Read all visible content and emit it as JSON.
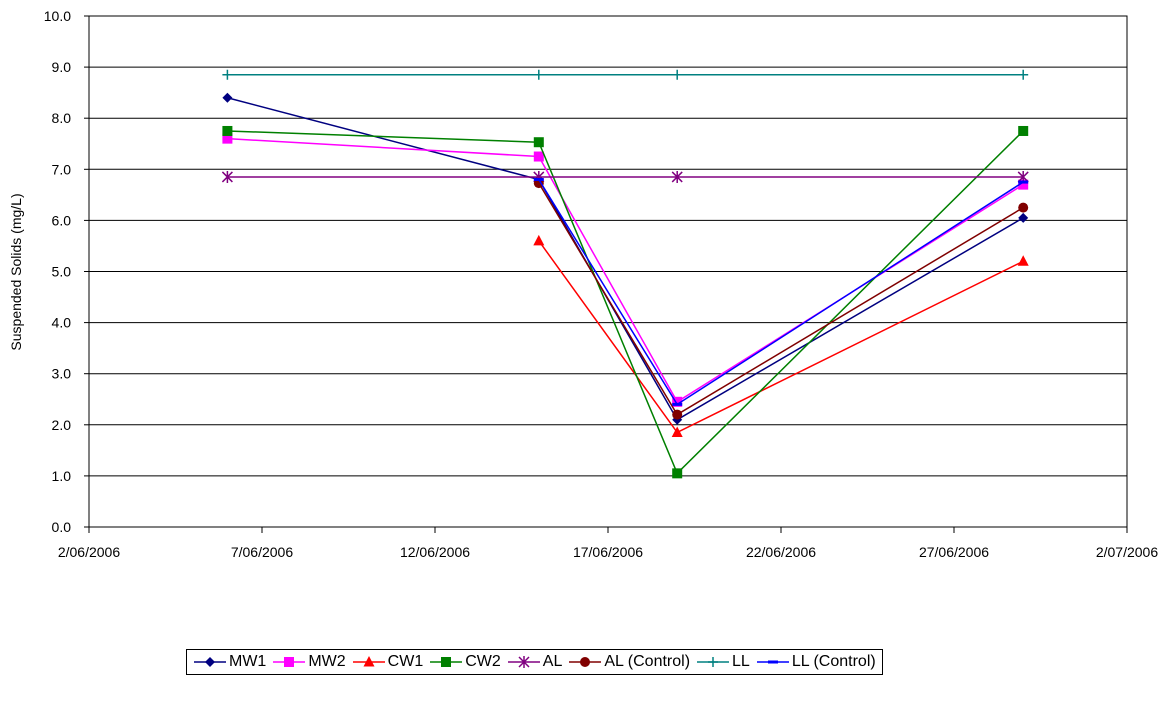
{
  "chart_data": {
    "type": "line",
    "ylabel": "Suspended Solids (mg/L)",
    "xlabel": "",
    "ylim": [
      0,
      10
    ],
    "y_ticks": [
      "0.0",
      "1.0",
      "2.0",
      "3.0",
      "4.0",
      "5.0",
      "6.0",
      "7.0",
      "8.0",
      "9.0",
      "10.0"
    ],
    "x_ticks": [
      "2/06/2006",
      "7/06/2006",
      "12/06/2006",
      "17/06/2006",
      "22/06/2006",
      "27/06/2006",
      "2/07/2006"
    ],
    "x_tick_dates": [
      "2006-06-02",
      "2006-06-07",
      "2006-06-12",
      "2006-06-17",
      "2006-06-22",
      "2006-06-27",
      "2006-07-02"
    ],
    "grid": "horizontal",
    "legend_position": "bottom",
    "series": [
      {
        "name": "MW1",
        "color": "#000080",
        "marker": "diamond",
        "points": [
          [
            "2006-06-06",
            8.4
          ],
          [
            "2006-06-15",
            6.8
          ],
          [
            "2006-06-19",
            2.1
          ],
          [
            "2006-06-29",
            6.05
          ]
        ]
      },
      {
        "name": "MW2",
        "color": "#FF00FF",
        "marker": "square",
        "points": [
          [
            "2006-06-06",
            7.6
          ],
          [
            "2006-06-15",
            7.25
          ],
          [
            "2006-06-19",
            2.45
          ],
          [
            "2006-06-29",
            6.7
          ]
        ]
      },
      {
        "name": "CW1",
        "color": "#FF0000",
        "marker": "triangle",
        "points": [
          [
            "2006-06-15",
            5.6
          ],
          [
            "2006-06-19",
            1.85
          ],
          [
            "2006-06-29",
            5.2
          ]
        ]
      },
      {
        "name": "CW2",
        "color": "#008000",
        "marker": "square",
        "points": [
          [
            "2006-06-06",
            7.75
          ],
          [
            "2006-06-15",
            7.53
          ],
          [
            "2006-06-19",
            1.05
          ],
          [
            "2006-06-29",
            7.75
          ]
        ]
      },
      {
        "name": "AL",
        "color": "#800080",
        "marker": "star",
        "points": [
          [
            "2006-06-06",
            6.85
          ],
          [
            "2006-06-15",
            6.85
          ],
          [
            "2006-06-19",
            6.85
          ],
          [
            "2006-06-29",
            6.85
          ]
        ]
      },
      {
        "name": "AL (Control)",
        "color": "#800000",
        "marker": "circle",
        "points": [
          [
            "2006-06-15",
            6.73
          ],
          [
            "2006-06-19",
            2.2
          ],
          [
            "2006-06-29",
            6.25
          ]
        ]
      },
      {
        "name": "LL",
        "color": "#008080",
        "marker": "plus",
        "points": [
          [
            "2006-06-06",
            8.85
          ],
          [
            "2006-06-15",
            8.85
          ],
          [
            "2006-06-19",
            8.85
          ],
          [
            "2006-06-29",
            8.85
          ]
        ]
      },
      {
        "name": "LL (Control)",
        "color": "#0000FF",
        "marker": "dash",
        "points": [
          [
            "2006-06-15",
            6.8
          ],
          [
            "2006-06-19",
            2.4
          ],
          [
            "2006-06-29",
            6.75
          ]
        ]
      }
    ]
  }
}
